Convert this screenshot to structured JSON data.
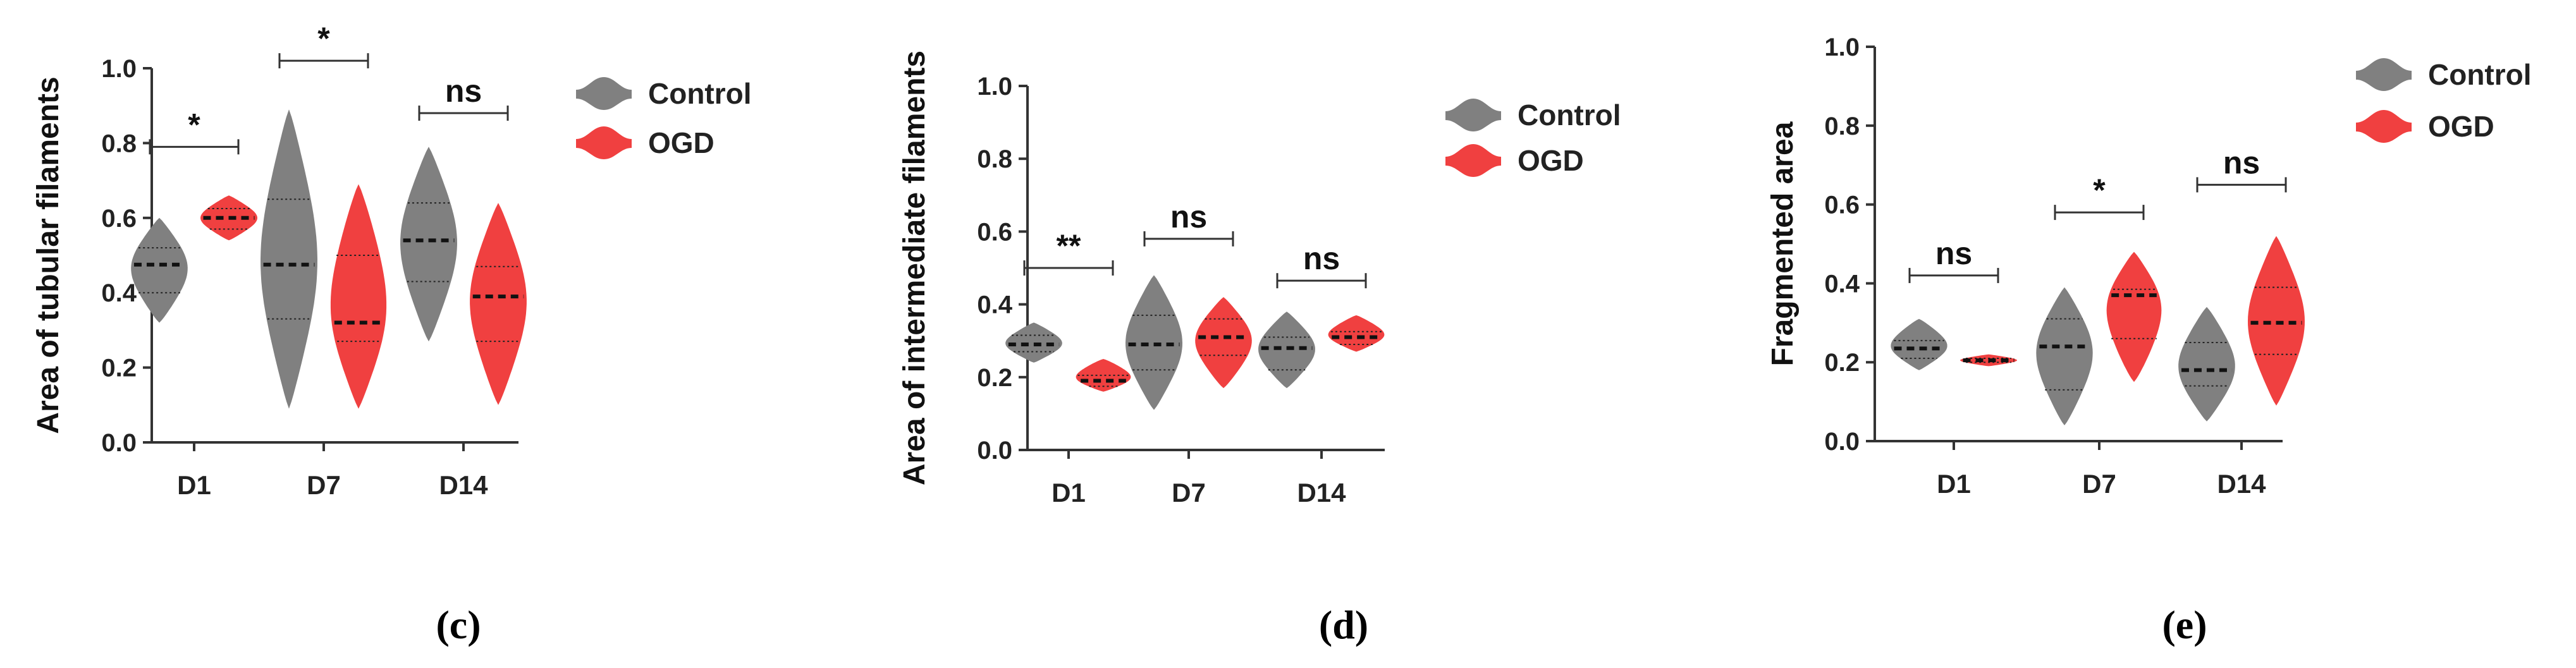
{
  "chart_data": [
    {
      "type": "violin",
      "panel_label": "(c)",
      "ylabel": "Area of tubular filaments",
      "ylim": [
        0,
        1.0
      ],
      "yticks": [
        "0.0",
        "0.2",
        "0.4",
        "0.6",
        "0.8",
        "1.0"
      ],
      "categories": [
        "D1",
        "D7",
        "D14"
      ],
      "legend": [
        {
          "name": "Control",
          "color": "#808080"
        },
        {
          "name": "OGD",
          "color": "#f04040"
        }
      ],
      "series": [
        {
          "name": "Control",
          "color": "#808080",
          "values": [
            {
              "min": 0.32,
              "q1": 0.4,
              "median": 0.475,
              "q3": 0.52,
              "max": 0.6
            },
            {
              "min": 0.09,
              "q1": 0.33,
              "median": 0.475,
              "q3": 0.65,
              "max": 0.89
            },
            {
              "min": 0.27,
              "q1": 0.43,
              "median": 0.54,
              "q3": 0.64,
              "max": 0.79
            }
          ]
        },
        {
          "name": "OGD",
          "color": "#f04040",
          "values": [
            {
              "min": 0.54,
              "q1": 0.57,
              "median": 0.6,
              "q3": 0.625,
              "max": 0.66
            },
            {
              "min": 0.09,
              "q1": 0.27,
              "median": 0.32,
              "q3": 0.5,
              "max": 0.69
            },
            {
              "min": 0.1,
              "q1": 0.27,
              "median": 0.39,
              "q3": 0.47,
              "max": 0.64
            }
          ]
        }
      ],
      "significance": [
        {
          "category": "D1",
          "label": "*",
          "y": 0.79
        },
        {
          "category": "D7",
          "label": "*",
          "y": 1.02
        },
        {
          "category": "D14",
          "label": "ns",
          "y": 0.88
        }
      ]
    },
    {
      "type": "violin",
      "panel_label": "(d)",
      "ylabel": "Area of intermediate filaments",
      "ylim": [
        0,
        1.0
      ],
      "yticks": [
        "0.0",
        "0.2",
        "0.4",
        "0.6",
        "0.8",
        "1.0"
      ],
      "categories": [
        "D1",
        "D7",
        "D14"
      ],
      "legend": [
        {
          "name": "Control",
          "color": "#808080"
        },
        {
          "name": "OGD",
          "color": "#f04040"
        }
      ],
      "series": [
        {
          "name": "Control",
          "color": "#808080",
          "values": [
            {
              "min": 0.24,
              "q1": 0.27,
              "median": 0.29,
              "q3": 0.315,
              "max": 0.35
            },
            {
              "min": 0.11,
              "q1": 0.22,
              "median": 0.29,
              "q3": 0.37,
              "max": 0.48
            },
            {
              "min": 0.17,
              "q1": 0.22,
              "median": 0.28,
              "q3": 0.31,
              "max": 0.38
            }
          ]
        },
        {
          "name": "OGD",
          "color": "#f04040",
          "values": [
            {
              "min": 0.16,
              "q1": 0.175,
              "median": 0.19,
              "q3": 0.205,
              "max": 0.25
            },
            {
              "min": 0.17,
              "q1": 0.26,
              "median": 0.31,
              "q3": 0.36,
              "max": 0.42
            },
            {
              "min": 0.27,
              "q1": 0.29,
              "median": 0.31,
              "q3": 0.325,
              "max": 0.37
            }
          ]
        }
      ],
      "significance": [
        {
          "category": "D1",
          "label": "**",
          "y": 0.5
        },
        {
          "category": "D7",
          "label": "ns",
          "y": 0.58
        },
        {
          "category": "D14",
          "label": "ns",
          "y": 0.465
        }
      ]
    },
    {
      "type": "violin",
      "panel_label": "(e)",
      "ylabel": "Fragmented area",
      "ylim": [
        0,
        1.0
      ],
      "yticks": [
        "0.0",
        "0.2",
        "0.4",
        "0.6",
        "0.8",
        "1.0"
      ],
      "categories": [
        "D1",
        "D7",
        "D14"
      ],
      "legend": [
        {
          "name": "Control",
          "color": "#808080"
        },
        {
          "name": "OGD",
          "color": "#f04040"
        }
      ],
      "series": [
        {
          "name": "Control",
          "color": "#808080",
          "values": [
            {
              "min": 0.18,
              "q1": 0.21,
              "median": 0.235,
              "q3": 0.255,
              "max": 0.31
            },
            {
              "min": 0.04,
              "q1": 0.13,
              "median": 0.24,
              "q3": 0.31,
              "max": 0.39
            },
            {
              "min": 0.05,
              "q1": 0.14,
              "median": 0.18,
              "q3": 0.25,
              "max": 0.34
            }
          ]
        },
        {
          "name": "OGD",
          "color": "#f04040",
          "values": [
            {
              "min": 0.19,
              "q1": 0.2,
              "median": 0.205,
              "q3": 0.21,
              "max": 0.22
            },
            {
              "min": 0.15,
              "q1": 0.26,
              "median": 0.37,
              "q3": 0.385,
              "max": 0.48
            },
            {
              "min": 0.09,
              "q1": 0.22,
              "median": 0.3,
              "q3": 0.39,
              "max": 0.52
            }
          ]
        }
      ],
      "significance": [
        {
          "category": "D1",
          "label": "ns",
          "y": 0.42
        },
        {
          "category": "D7",
          "label": "*",
          "y": 0.58
        },
        {
          "category": "D14",
          "label": "ns",
          "y": 0.65
        }
      ]
    }
  ]
}
